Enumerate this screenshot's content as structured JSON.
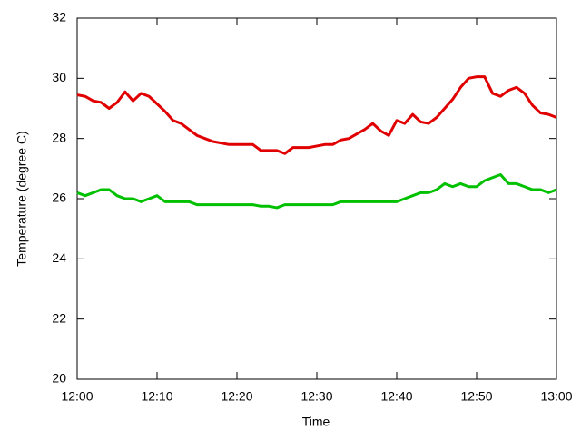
{
  "chart_data": {
    "type": "line",
    "xlabel": "Time",
    "ylabel": "Temperature (degree C)",
    "x": [
      0,
      1,
      2,
      3,
      4,
      5,
      6,
      7,
      8,
      9,
      10,
      11,
      12,
      13,
      14,
      15,
      16,
      17,
      18,
      19,
      20,
      21,
      22,
      23,
      24,
      25,
      26,
      27,
      28,
      29,
      30,
      31,
      32,
      33,
      34,
      35,
      36,
      37,
      38,
      39,
      40,
      41,
      42,
      43,
      44,
      45,
      46,
      47,
      48,
      49,
      50,
      51,
      52,
      53,
      54,
      55,
      56,
      57,
      58,
      59,
      60
    ],
    "series": [
      {
        "color": "#e00000",
        "values": [
          29.45,
          29.4,
          29.25,
          29.2,
          29.0,
          29.2,
          29.55,
          29.25,
          29.5,
          29.4,
          29.15,
          28.9,
          28.6,
          28.5,
          28.3,
          28.1,
          28.0,
          27.9,
          27.85,
          27.8,
          27.8,
          27.8,
          27.8,
          27.6,
          27.6,
          27.6,
          27.5,
          27.7,
          27.7,
          27.7,
          27.75,
          27.8,
          27.8,
          27.95,
          28.0,
          28.15,
          28.3,
          28.5,
          28.25,
          28.1,
          28.6,
          28.5,
          28.8,
          28.55,
          28.5,
          28.7,
          29.0,
          29.3,
          29.7,
          30.0,
          30.05,
          30.05,
          29.5,
          29.4,
          29.6,
          29.7,
          29.5,
          29.1,
          28.85,
          28.8,
          28.7
        ]
      },
      {
        "color": "#00c000",
        "values": [
          26.2,
          26.1,
          26.2,
          26.3,
          26.3,
          26.1,
          26.0,
          26.0,
          25.9,
          26.0,
          26.1,
          25.9,
          25.9,
          25.9,
          25.9,
          25.8,
          25.8,
          25.8,
          25.8,
          25.8,
          25.8,
          25.8,
          25.8,
          25.75,
          25.75,
          25.7,
          25.8,
          25.8,
          25.8,
          25.8,
          25.8,
          25.8,
          25.8,
          25.9,
          25.9,
          25.9,
          25.9,
          25.9,
          25.9,
          25.9,
          25.9,
          26.0,
          26.1,
          26.2,
          26.2,
          26.3,
          26.5,
          26.4,
          26.5,
          26.4,
          26.4,
          26.6,
          26.7,
          26.8,
          26.5,
          26.5,
          26.4,
          26.3,
          26.3,
          26.2,
          26.3
        ]
      }
    ],
    "xlim": [
      0,
      60
    ],
    "xticks": [
      {
        "value": 0,
        "label": "12:00"
      },
      {
        "value": 10,
        "label": "12:10"
      },
      {
        "value": 20,
        "label": "12:20"
      },
      {
        "value": 30,
        "label": "12:30"
      },
      {
        "value": 40,
        "label": "12:40"
      },
      {
        "value": 50,
        "label": "12:50"
      },
      {
        "value": 60,
        "label": "13:00"
      }
    ],
    "ylim": [
      20,
      32
    ],
    "yticks": [
      20,
      22,
      24,
      26,
      28,
      30,
      32
    ],
    "grid": false
  }
}
